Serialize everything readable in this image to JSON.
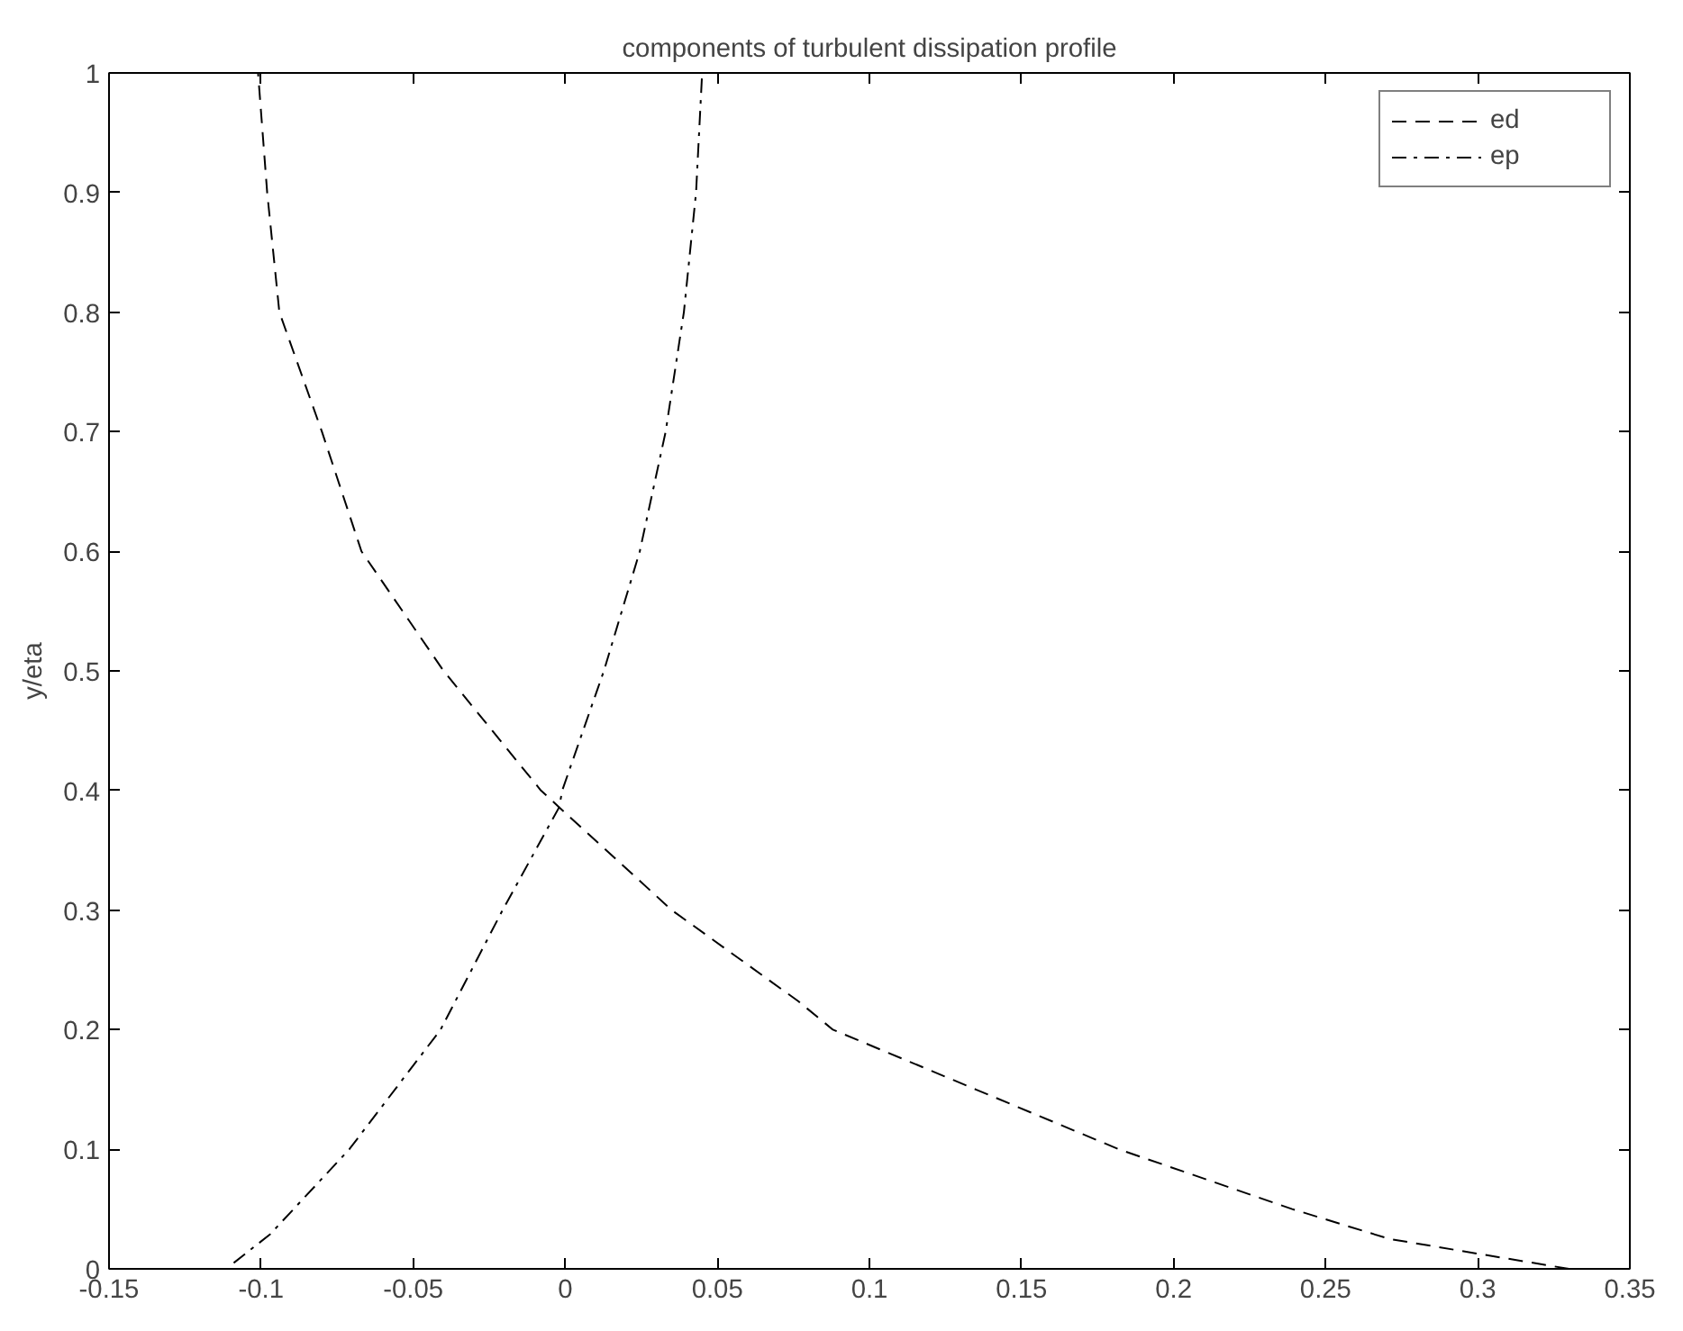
{
  "chart_data": {
    "type": "line",
    "title": "components of turbulent dissipation profile",
    "ylabel": "y/eta",
    "xlim": [
      -0.15,
      0.35
    ],
    "xticks": [
      -0.15,
      -0.1,
      -0.05,
      0,
      0.05,
      0.1,
      0.15,
      0.2,
      0.25,
      0.3,
      0.35
    ],
    "ylim": [
      0,
      1
    ],
    "yticks": [
      0,
      0.1,
      0.2,
      0.3,
      0.4,
      0.5,
      0.6,
      0.7,
      0.8,
      0.9,
      1
    ],
    "grid": false,
    "legend": "top right",
    "series": [
      {
        "name": "ed",
        "color": "#000000",
        "line_style": "dashed",
        "x": [
          0.33,
          0.271,
          0.239,
          0.182,
          0.135,
          0.088,
          0.0765,
          0.035,
          -0.002,
          -0.008,
          -0.04,
          -0.067,
          -0.08,
          -0.094,
          -0.098,
          -0.101
        ],
        "values": [
          0.0,
          0.025,
          0.05,
          0.1,
          0.15,
          0.2,
          0.224,
          0.3,
          0.386,
          0.4,
          0.5,
          0.6,
          0.7,
          0.8,
          0.9,
          1.0
        ]
      },
      {
        "name": "ep",
        "color": "#000000",
        "line_style": "dashdot",
        "x": [
          -0.109,
          -0.097,
          -0.071,
          -0.041,
          -0.0206,
          -0.002,
          -0.001,
          0.0127,
          0.0245,
          0.033,
          0.039,
          0.043,
          0.045
        ],
        "values": [
          0.005,
          0.029,
          0.1,
          0.2,
          0.3,
          0.386,
          0.4,
          0.5,
          0.6,
          0.7,
          0.8,
          0.9,
          1.0
        ]
      }
    ]
  }
}
